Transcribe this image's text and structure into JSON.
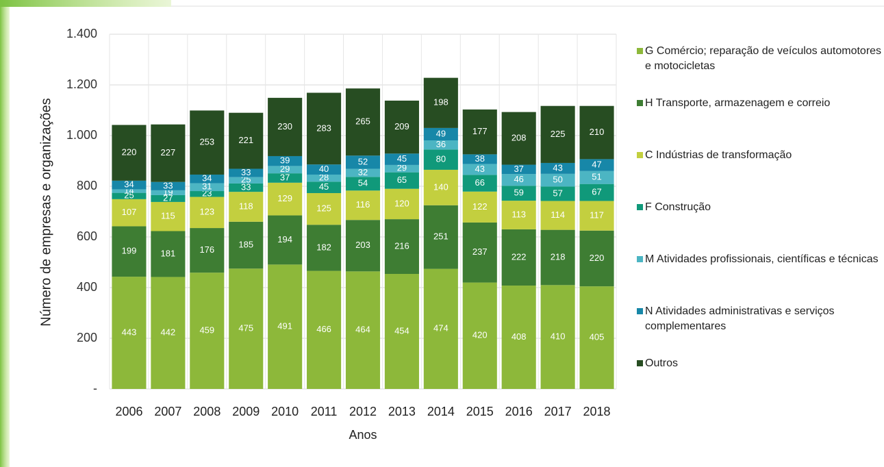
{
  "chart_data": {
    "type": "stacked_bar",
    "y_axis_label": "Número de empresas e organizações",
    "x_axis_label": "Anos",
    "categories": [
      "2006",
      "2007",
      "2008",
      "2009",
      "2010",
      "2011",
      "2012",
      "2013",
      "2014",
      "2015",
      "2016",
      "2017",
      "2018"
    ],
    "series": [
      {
        "name": "G Comércio; reparação de veículos automotores e motocicletas",
        "color": "#8db83a",
        "values": [
          443,
          442,
          459,
          475,
          491,
          466,
          464,
          454,
          474,
          420,
          408,
          410,
          405
        ]
      },
      {
        "name": "H Transporte, armazenagem e correio",
        "color": "#3e7d33",
        "values": [
          199,
          181,
          176,
          185,
          194,
          182,
          203,
          216,
          251,
          237,
          222,
          218,
          220
        ]
      },
      {
        "name": "C Indústrias de transformação",
        "color": "#c3cf3f",
        "values": [
          107,
          115,
          123,
          118,
          129,
          125,
          116,
          120,
          140,
          122,
          113,
          114,
          117
        ]
      },
      {
        "name": "F Construção",
        "color": "#10997a",
        "values": [
          25,
          27,
          23,
          33,
          37,
          45,
          54,
          65,
          80,
          66,
          59,
          57,
          67
        ]
      },
      {
        "name": "M Atividades profissionais, científicas e técnicas",
        "color": "#4cb5c3",
        "values": [
          14,
          19,
          31,
          25,
          29,
          28,
          32,
          29,
          36,
          43,
          46,
          50,
          51
        ]
      },
      {
        "name": "N Atividades administrativas e serviços complementares",
        "color": "#1787a8",
        "values": [
          34,
          33,
          34,
          33,
          39,
          40,
          52,
          45,
          49,
          38,
          37,
          43,
          47
        ]
      },
      {
        "name": "Outros",
        "color": "#274d22",
        "values": [
          220,
          227,
          253,
          221,
          230,
          283,
          265,
          209,
          198,
          177,
          208,
          225,
          210
        ]
      }
    ],
    "ylim": [
      0,
      1400
    ],
    "yticks": [
      {
        "value": 0,
        "label": "-"
      },
      200,
      400,
      600,
      800,
      {
        "value": 1000,
        "label": "1.000"
      },
      {
        "value": 1200,
        "label": "1.200"
      },
      {
        "value": 1400,
        "label": "1.400"
      }
    ],
    "grid": true
  }
}
